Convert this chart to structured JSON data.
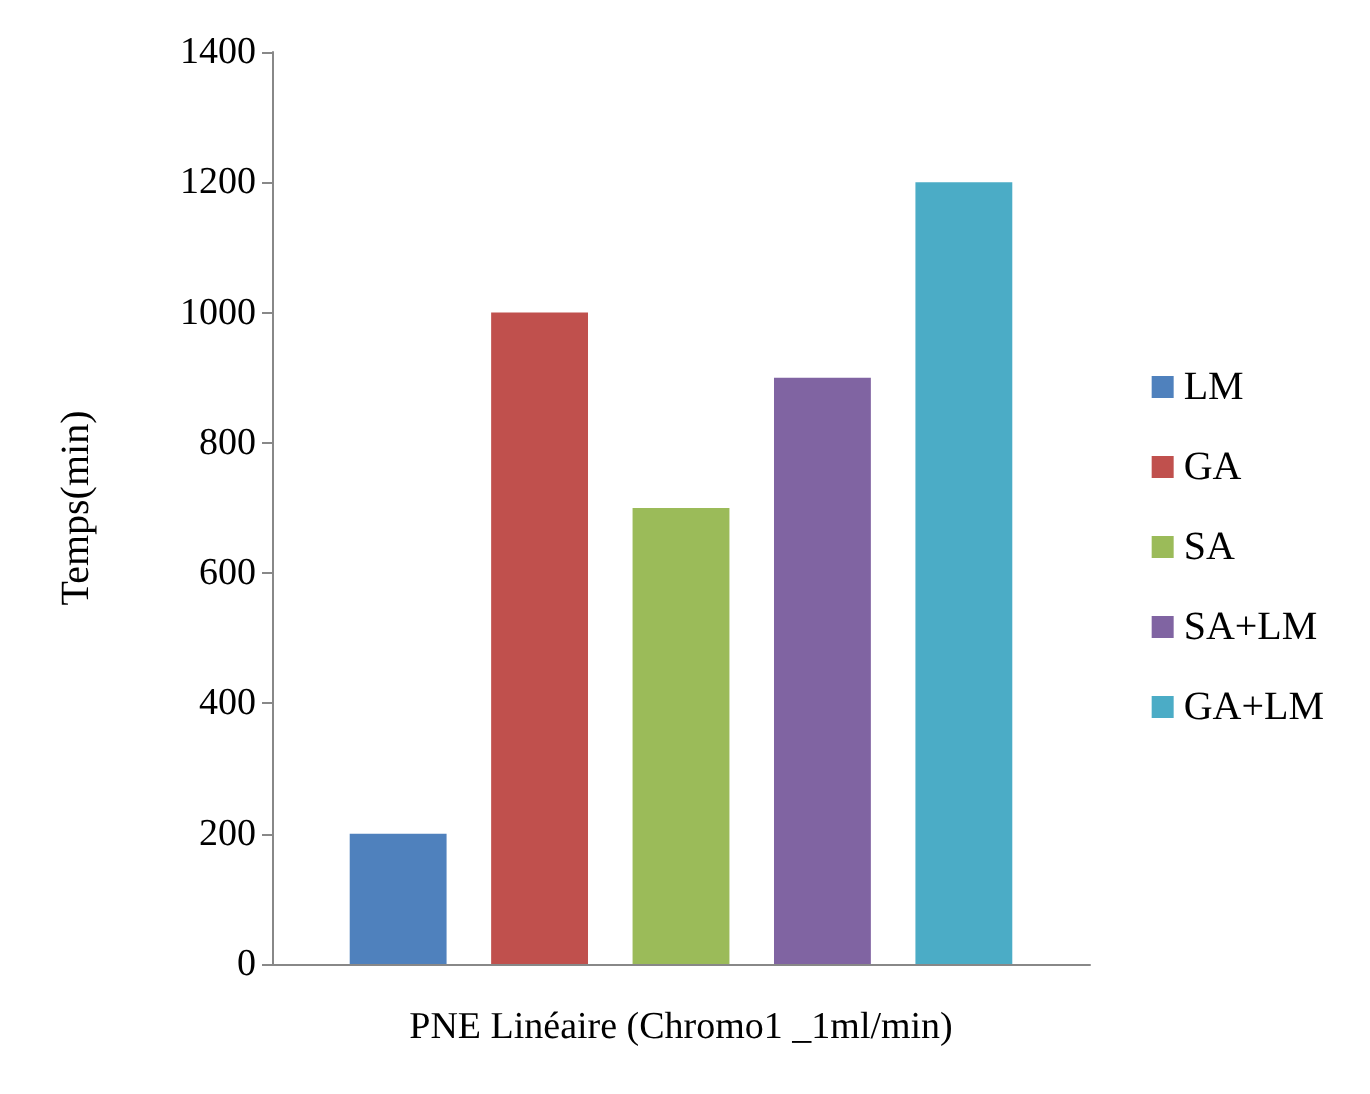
{
  "chart_data": {
    "type": "bar",
    "ylabel": "Temps(min)",
    "categories": [
      "PNE Linéaire (Chromo1 _1ml/min)"
    ],
    "series": [
      {
        "name": "LM",
        "color": "#4f81bd",
        "values": [
          200
        ]
      },
      {
        "name": "GA",
        "color": "#c0504d",
        "values": [
          1000
        ]
      },
      {
        "name": "SA",
        "color": "#9bbb59",
        "values": [
          700
        ]
      },
      {
        "name": "SA+LM",
        "color": "#8064a2",
        "values": [
          900
        ]
      },
      {
        "name": "GA+LM",
        "color": "#4bacc6",
        "values": [
          1200
        ]
      }
    ],
    "ylim": [
      0,
      1400
    ],
    "yticks": [
      0,
      200,
      400,
      600,
      800,
      1000,
      1200,
      1400
    ],
    "grid": false,
    "legend": "right"
  }
}
